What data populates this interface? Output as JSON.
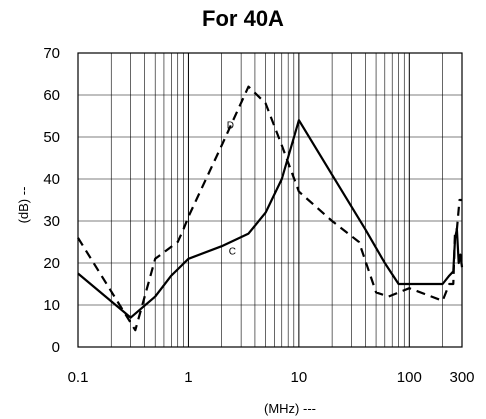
{
  "chart_data": {
    "type": "line",
    "title": "For 40A",
    "xlabel": "(MHz) ---",
    "ylabel": "(dB) --",
    "xscale": "log",
    "xlim": [
      0.1,
      300
    ],
    "ylim": [
      0,
      70
    ],
    "x_ticks": [
      0.1,
      1,
      10,
      100,
      300
    ],
    "x_tick_labels": [
      "0.1",
      "1",
      "10",
      "100",
      "300"
    ],
    "y_ticks": [
      0,
      10,
      20,
      30,
      40,
      50,
      60,
      70
    ],
    "y_tick_labels": [
      "0",
      "10",
      "20",
      "30",
      "40",
      "50",
      "60",
      "70"
    ],
    "grid": true,
    "series": [
      {
        "name": "C",
        "style": "solid",
        "x": [
          0.1,
          0.3,
          0.5,
          0.7,
          1,
          2,
          3.5,
          5,
          7,
          10,
          20,
          40,
          60,
          80,
          100,
          200,
          230,
          250,
          260,
          270,
          280,
          290,
          300
        ],
        "y": [
          17.5,
          7,
          12,
          17,
          21,
          24,
          27,
          32,
          40,
          54,
          41,
          28,
          20,
          15,
          15,
          15,
          17,
          18,
          26,
          28,
          20,
          22,
          19
        ]
      },
      {
        "name": "D",
        "style": "dashed",
        "x": [
          0.1,
          0.33,
          0.5,
          0.8,
          0.9,
          1,
          2,
          3.5,
          5,
          7,
          10,
          20,
          35,
          50,
          65,
          100,
          200,
          230,
          250,
          260,
          270,
          285,
          300
        ],
        "y": [
          26,
          4,
          21,
          25,
          28,
          31,
          48,
          62,
          58,
          48,
          37,
          30,
          25,
          13,
          12,
          14,
          11,
          15,
          15,
          28,
          28,
          35,
          35
        ]
      }
    ],
    "annotations": [
      {
        "text": "C",
        "x": 2.5,
        "y": 22
      },
      {
        "text": "D",
        "x": 2.4,
        "y": 52
      }
    ]
  }
}
